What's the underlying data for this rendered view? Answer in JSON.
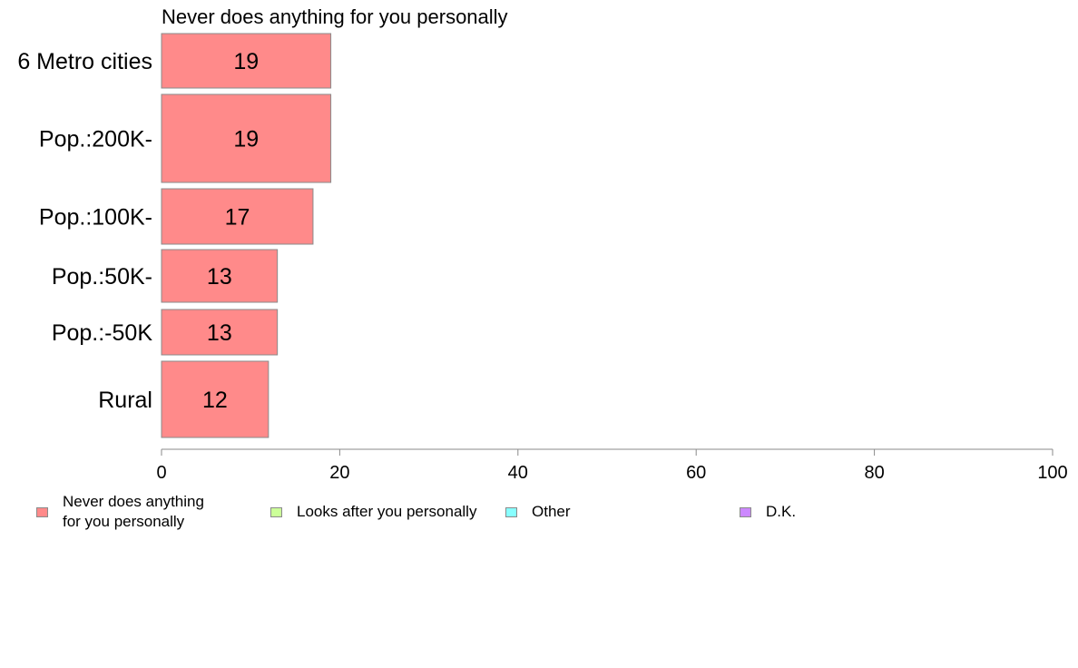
{
  "chart_data": {
    "type": "bar",
    "orientation": "horizontal",
    "title": "Never does anything for you personally",
    "xlabel": "",
    "ylabel": "",
    "xlim": [
      0,
      100
    ],
    "xticks": [
      0,
      20,
      40,
      60,
      80,
      100
    ],
    "grid": false,
    "categories": [
      "6 Metro cities",
      "Pop.:200K-",
      "Pop.:100K-",
      "Pop.:50K-",
      "Pop.:-50K",
      "Rural"
    ],
    "series": [
      {
        "name": "Never does anything for you personally",
        "values": [
          19,
          19,
          17,
          13,
          13,
          12
        ],
        "color": "#ff8a8a"
      }
    ],
    "legend": {
      "position": "bottom",
      "entries": [
        {
          "label": "Never does anything\nfor you personally",
          "color": "#ff8a8a"
        },
        {
          "label": "Looks after you personally",
          "color": "#ccff99"
        },
        {
          "label": "Other",
          "color": "#88ffff"
        },
        {
          "label": "D.K.",
          "color": "#cc88ff"
        }
      ]
    }
  }
}
